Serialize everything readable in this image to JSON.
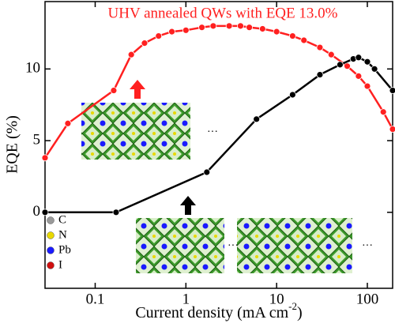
{
  "chart_data": {
    "type": "line",
    "title": "UHV annealed QWs with EQE 13.0%",
    "title_color": "#ff2020",
    "xlabel": {
      "text": "Current density (mA cm",
      "sup": "-2",
      "end": ")"
    },
    "ylabel": "EQE (%)",
    "log_x": true,
    "xlim": [
      0.028,
      190
    ],
    "xticks": [
      0.1,
      1,
      10,
      100
    ],
    "ylim": [
      -5.3,
      14.7
    ],
    "yticks": [
      0,
      5,
      10
    ],
    "series": [
      {
        "color": "#ff2020",
        "x": [
          0.028,
          0.05,
          0.16,
          0.25,
          0.35,
          0.5,
          0.7,
          1.0,
          1.5,
          2,
          3,
          4,
          5,
          7,
          10,
          15,
          20,
          30,
          40,
          60,
          80,
          100,
          150,
          190
        ],
        "values": [
          3.8,
          6.2,
          8.5,
          11.0,
          11.8,
          12.3,
          12.6,
          12.7,
          12.9,
          13.0,
          13.0,
          13.0,
          12.9,
          12.8,
          12.6,
          12.3,
          12.0,
          11.5,
          11.0,
          10.2,
          9.5,
          8.8,
          7.0,
          5.8
        ]
      },
      {
        "color": "#000000",
        "x": [
          0.028,
          0.17,
          1.7,
          6,
          15,
          30,
          50,
          70,
          80,
          100,
          120,
          190
        ],
        "values": [
          0,
          0,
          2.8,
          6.5,
          8.2,
          9.6,
          10.3,
          10.7,
          10.8,
          10.5,
          10.0,
          8.5
        ]
      }
    ],
    "atoms_legend": [
      {
        "label": "C",
        "color": "#999999"
      },
      {
        "label": "N",
        "color": "#e8d800"
      },
      {
        "label": "Pb",
        "color": "#1a1aff"
      },
      {
        "label": "I",
        "color": "#d01010"
      }
    ],
    "ellipsis": "···"
  }
}
